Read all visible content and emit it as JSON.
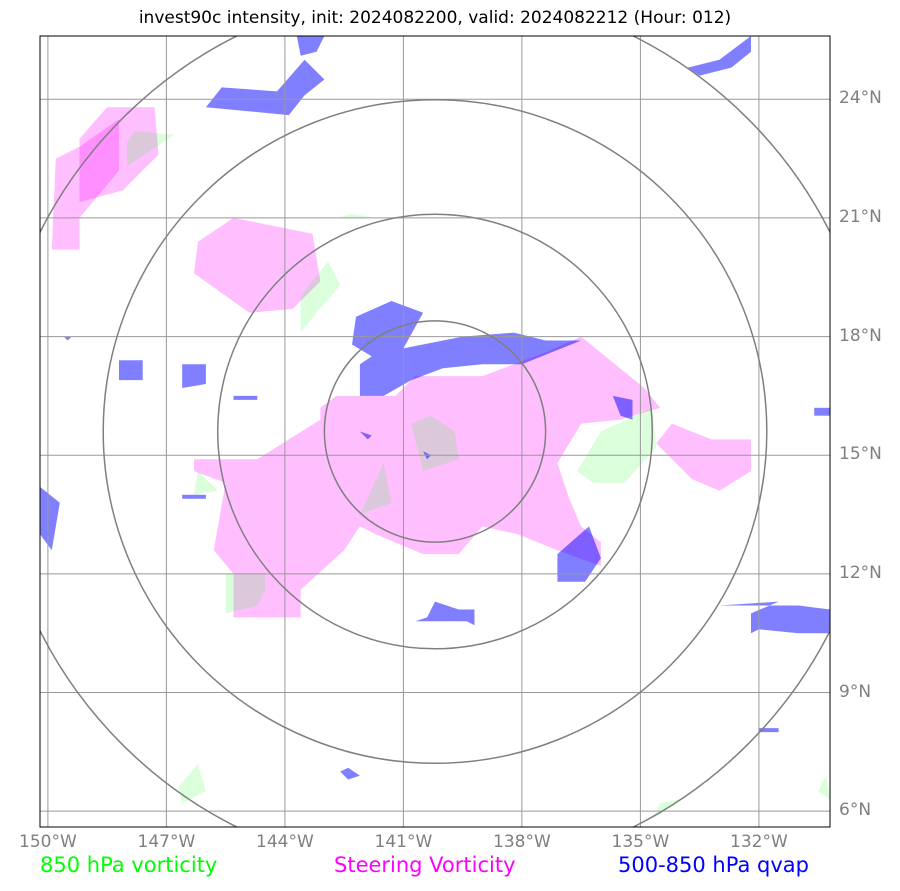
{
  "title": "invest90c intensity, init: 2024082200, valid: 2024082212 (Hour: 012)",
  "colors": {
    "vort850": "#00ff00",
    "steering": "#ff00ff",
    "qvap": "#0000ff",
    "grid": "#999999",
    "rings": "#7f7f7f"
  },
  "chart_data": {
    "type": "map",
    "title": "invest90c intensity, init: 2024082200, valid: 2024082212 (Hour: 012)",
    "xlim": [
      -150.2,
      -130.2
    ],
    "ylim": [
      5.6,
      25.6
    ],
    "grid": true,
    "x_ticks": [
      {
        "value": -150,
        "label": "150°W"
      },
      {
        "value": -147,
        "label": "147°W"
      },
      {
        "value": -144,
        "label": "144°W"
      },
      {
        "value": -141,
        "label": "141°W"
      },
      {
        "value": -138,
        "label": "138°W"
      },
      {
        "value": -135,
        "label": "135°W"
      },
      {
        "value": -132,
        "label": "132°W"
      }
    ],
    "y_ticks": [
      {
        "value": 6,
        "label": "6°N"
      },
      {
        "value": 9,
        "label": "9°N"
      },
      {
        "value": 12,
        "label": "12°N"
      },
      {
        "value": 15,
        "label": "15°N"
      },
      {
        "value": 18,
        "label": "18°N"
      },
      {
        "value": 21,
        "label": "21°N"
      },
      {
        "value": 24,
        "label": "24°N"
      }
    ],
    "legend": [
      {
        "label": "850 hPa vorticity",
        "color": "#00ff00"
      },
      {
        "label": "Steering Vorticity",
        "color": "#ff00ff"
      },
      {
        "label": "500-850 hPa qvap",
        "color": "#0000ff"
      }
    ],
    "center": [
      -140.2,
      15.6
    ],
    "ring_radii_deg": [
      2.8,
      5.5,
      8.4,
      11.2
    ],
    "fields": {
      "steering": [
        [
          [
            -149.8,
            22.5
          ],
          [
            -149.2,
            22.8
          ],
          [
            -148.2,
            23.5
          ],
          [
            -148.2,
            22.2
          ],
          [
            -149.2,
            21.0
          ],
          [
            -149.2,
            20.2
          ],
          [
            -149.9,
            20.2
          ]
        ],
        [
          [
            -149.2,
            23.0
          ],
          [
            -148.5,
            23.8
          ],
          [
            -147.3,
            23.8
          ],
          [
            -147.2,
            22.6
          ],
          [
            -148.1,
            21.7
          ],
          [
            -149.2,
            21.4
          ]
        ],
        [
          [
            -146.2,
            20.4
          ],
          [
            -145.3,
            21.0
          ],
          [
            -143.3,
            20.6
          ],
          [
            -143.1,
            19.4
          ],
          [
            -143.8,
            18.7
          ],
          [
            -144.9,
            18.6
          ],
          [
            -146.3,
            19.6
          ]
        ],
        [
          [
            -142.7,
            16.5
          ],
          [
            -141.2,
            16.5
          ],
          [
            -140.7,
            17.0
          ],
          [
            -139.0,
            17.0
          ],
          [
            -137.4,
            17.6
          ],
          [
            -136.5,
            18.0
          ],
          [
            -134.9,
            16.7
          ],
          [
            -134.5,
            16.2
          ],
          [
            -135.5,
            15.9
          ],
          [
            -136.5,
            15.8
          ],
          [
            -137.1,
            14.8
          ],
          [
            -136.8,
            13.9
          ],
          [
            -136.5,
            13.2
          ],
          [
            -136.0,
            12.8
          ],
          [
            -136.0,
            12.2
          ],
          [
            -137.1,
            12.6
          ],
          [
            -138.1,
            13.0
          ],
          [
            -139.0,
            13.2
          ],
          [
            -139.6,
            12.5
          ],
          [
            -140.5,
            12.5
          ],
          [
            -141.7,
            13.0
          ],
          [
            -142.1,
            13.2
          ],
          [
            -142.5,
            12.6
          ],
          [
            -143.6,
            11.6
          ],
          [
            -143.6,
            10.9
          ],
          [
            -145.3,
            10.9
          ],
          [
            -145.3,
            12.0
          ],
          [
            -145.8,
            12.6
          ],
          [
            -145.5,
            14.3
          ],
          [
            -146.3,
            14.6
          ],
          [
            -146.3,
            14.9
          ],
          [
            -144.7,
            14.9
          ],
          [
            -143.1,
            15.9
          ],
          [
            -143.1,
            16.2
          ]
        ],
        [
          [
            -134.2,
            15.8
          ],
          [
            -133.2,
            15.4
          ],
          [
            -132.2,
            15.4
          ],
          [
            -132.2,
            14.6
          ],
          [
            -133.0,
            14.1
          ],
          [
            -133.7,
            14.4
          ],
          [
            -134.6,
            15.3
          ]
        ]
      ],
      "vort850": [
        [
          [
            -146.8,
            23.1
          ],
          [
            -148.0,
            22.3
          ],
          [
            -148.0,
            22.9
          ],
          [
            -147.8,
            23.2
          ]
        ],
        [
          [
            -142.9,
            19.9
          ],
          [
            -142.6,
            19.3
          ],
          [
            -143.2,
            18.6
          ],
          [
            -143.6,
            18.1
          ],
          [
            -143.6,
            19.0
          ],
          [
            -143.4,
            19.3
          ]
        ],
        [
          [
            -134.7,
            16.2
          ],
          [
            -134.6,
            15.2
          ],
          [
            -135.4,
            14.3
          ],
          [
            -136.2,
            14.3
          ],
          [
            -136.6,
            14.6
          ],
          [
            -136.0,
            15.6
          ]
        ],
        [
          [
            -140.8,
            15.8
          ],
          [
            -140.3,
            16.0
          ],
          [
            -139.7,
            15.6
          ],
          [
            -139.6,
            14.9
          ],
          [
            -140.5,
            14.6
          ]
        ],
        [
          [
            -141.5,
            14.8
          ],
          [
            -142.1,
            13.5
          ],
          [
            -141.3,
            13.8
          ]
        ],
        [
          [
            -146.2,
            14.6
          ],
          [
            -146.3,
            14.0
          ],
          [
            -145.7,
            14.1
          ]
        ],
        [
          [
            -144.5,
            12.0
          ],
          [
            -145.5,
            12.0
          ],
          [
            -145.5,
            11.0
          ],
          [
            -144.7,
            11.2
          ],
          [
            -144.5,
            11.6
          ]
        ],
        [
          [
            -142.7,
            21.0
          ],
          [
            -141.7,
            21.0
          ],
          [
            -142.3,
            21.1
          ]
        ],
        [
          [
            -146.2,
            7.2
          ],
          [
            -146.7,
            6.6
          ],
          [
            -146.6,
            6.2
          ],
          [
            -146.0,
            6.5
          ]
        ],
        [
          [
            -134.0,
            6.3
          ],
          [
            -134.4,
            6.0
          ],
          [
            -134.7,
            5.8
          ],
          [
            -134.5,
            6.2
          ]
        ],
        [
          [
            -130.3,
            6.9
          ],
          [
            -130.5,
            6.5
          ],
          [
            -130.2,
            6.3
          ]
        ]
      ],
      "qvap": [
        [
          [
            -143.7,
            25.6
          ],
          [
            -143.0,
            25.6
          ],
          [
            -143.2,
            25.2
          ],
          [
            -143.6,
            25.1
          ]
        ],
        [
          [
            -143.5,
            25.0
          ],
          [
            -143.0,
            24.5
          ],
          [
            -143.5,
            24.1
          ],
          [
            -143.9,
            23.6
          ],
          [
            -146.0,
            23.8
          ],
          [
            -145.6,
            24.3
          ],
          [
            -144.2,
            24.2
          ]
        ],
        [
          [
            -132.2,
            25.6
          ],
          [
            -132.2,
            25.2
          ],
          [
            -132.7,
            24.8
          ],
          [
            -133.5,
            24.6
          ],
          [
            -133.8,
            24.8
          ],
          [
            -133.0,
            25.0
          ]
        ],
        [
          [
            -141.0,
            17.7
          ],
          [
            -139.5,
            18.0
          ],
          [
            -138.2,
            18.1
          ],
          [
            -137.4,
            17.9
          ],
          [
            -136.5,
            17.9
          ],
          [
            -138.0,
            17.3
          ],
          [
            -139.0,
            17.3
          ],
          [
            -140.0,
            17.2
          ],
          [
            -140.8,
            16.9
          ],
          [
            -141.5,
            16.5
          ],
          [
            -142.1,
            16.5
          ],
          [
            -142.1,
            17.3
          ],
          [
            -141.8,
            17.5
          ],
          [
            -142.3,
            17.8
          ],
          [
            -142.2,
            18.5
          ],
          [
            -141.3,
            18.9
          ],
          [
            -140.5,
            18.6
          ]
        ],
        [
          [
            -135.7,
            16.5
          ],
          [
            -135.2,
            16.4
          ],
          [
            -135.2,
            15.9
          ],
          [
            -135.5,
            16.0
          ]
        ],
        [
          [
            -137.1,
            12.5
          ],
          [
            -136.3,
            13.2
          ],
          [
            -136.0,
            12.4
          ],
          [
            -136.4,
            11.8
          ],
          [
            -137.1,
            11.8
          ]
        ],
        [
          [
            -140.7,
            10.8
          ],
          [
            -139.4,
            10.8
          ],
          [
            -139.2,
            10.7
          ],
          [
            -139.2,
            11.1
          ],
          [
            -139.6,
            11.1
          ],
          [
            -140.2,
            11.3
          ],
          [
            -140.4,
            10.9
          ]
        ],
        [
          [
            -133.0,
            11.2
          ],
          [
            -131.0,
            11.2
          ],
          [
            -130.2,
            11.1
          ],
          [
            -130.2,
            10.5
          ],
          [
            -131.0,
            10.5
          ],
          [
            -132.0,
            10.6
          ],
          [
            -132.2,
            10.5
          ],
          [
            -132.2,
            11.0
          ],
          [
            -131.5,
            11.3
          ]
        ],
        [
          [
            -150.2,
            14.2
          ],
          [
            -149.7,
            13.8
          ],
          [
            -149.9,
            12.6
          ],
          [
            -150.2,
            13.0
          ]
        ],
        [
          [
            -146.6,
            17.3
          ],
          [
            -146.0,
            17.3
          ],
          [
            -146.0,
            16.8
          ],
          [
            -146.6,
            16.7
          ]
        ],
        [
          [
            -146.6,
            14.0
          ],
          [
            -146.0,
            14.0
          ],
          [
            -146.0,
            13.9
          ],
          [
            -146.6,
            13.9
          ]
        ],
        [
          [
            -130.6,
            16.2
          ],
          [
            -130.2,
            16.2
          ],
          [
            -130.2,
            16.0
          ],
          [
            -130.6,
            16.0
          ]
        ],
        [
          [
            -142.1,
            15.6
          ],
          [
            -141.8,
            15.5
          ],
          [
            -141.9,
            15.4
          ]
        ],
        [
          [
            -140.5,
            15.1
          ],
          [
            -140.3,
            15.0
          ],
          [
            -140.4,
            14.9
          ]
        ],
        [
          [
            -132.0,
            8.1
          ],
          [
            -131.5,
            8.1
          ],
          [
            -131.5,
            8.0
          ],
          [
            -132.0,
            8.0
          ]
        ],
        [
          [
            -142.4,
            7.1
          ],
          [
            -142.1,
            6.9
          ],
          [
            -142.4,
            6.8
          ],
          [
            -142.6,
            7.0
          ]
        ],
        [
          [
            -149.6,
            18.0
          ],
          [
            -149.4,
            18.0
          ],
          [
            -149.5,
            17.9
          ]
        ],
        [
          [
            -145.3,
            16.5
          ],
          [
            -144.7,
            16.5
          ],
          [
            -144.7,
            16.4
          ],
          [
            -145.3,
            16.4
          ]
        ],
        [
          [
            -148.2,
            17.4
          ],
          [
            -147.6,
            17.4
          ],
          [
            -147.6,
            16.9
          ],
          [
            -148.2,
            16.9
          ]
        ]
      ]
    }
  }
}
